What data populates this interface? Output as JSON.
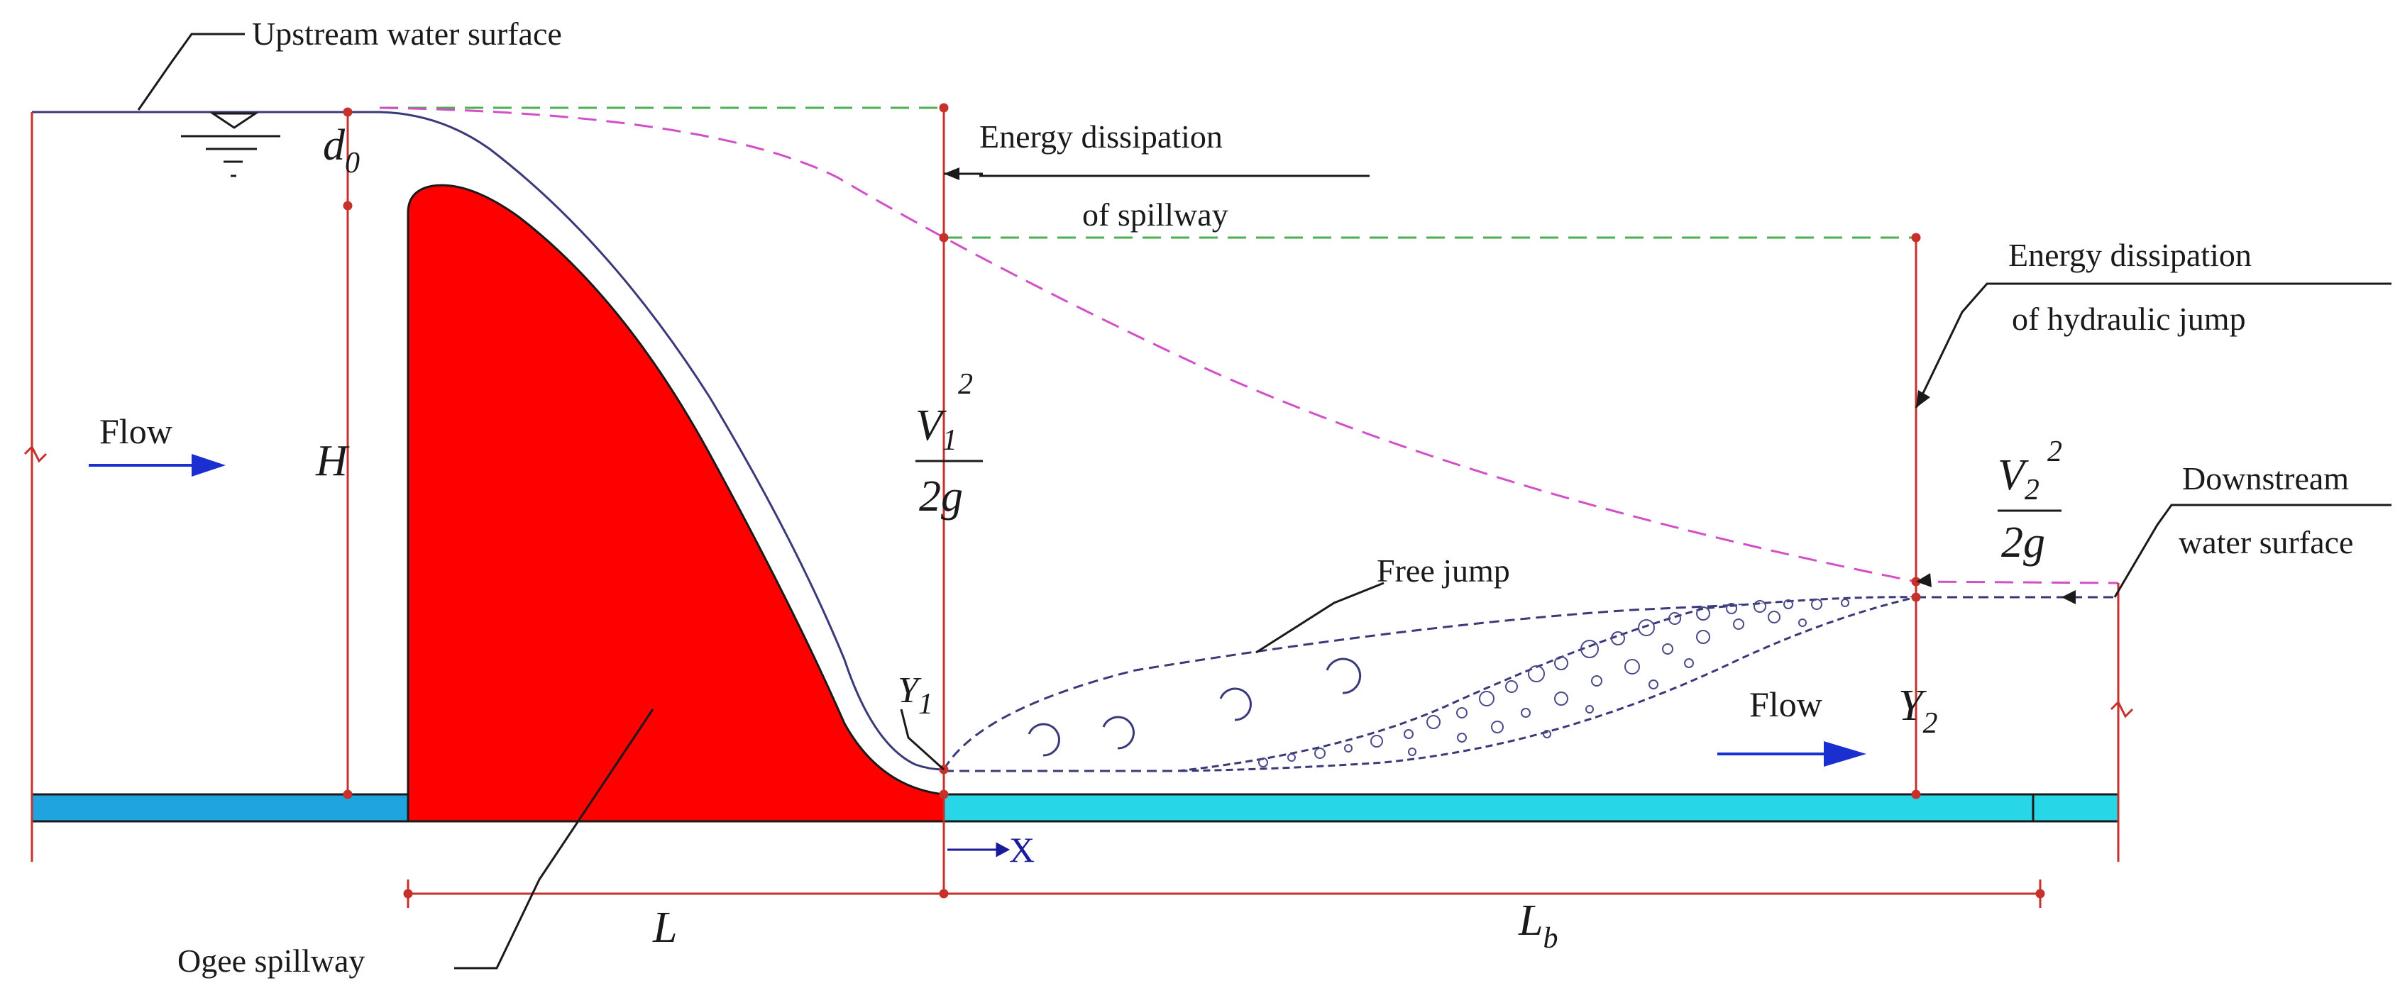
{
  "labels": {
    "upstream_surface": "Upstream water surface",
    "energy_spillway_line1": "Energy dissipation",
    "energy_spillway_line2": "of spillway",
    "energy_jump_line1": "Energy dissipation",
    "energy_jump_line2": "of hydraulic jump",
    "downstream_line1": "Downstream",
    "downstream_line2": "water surface",
    "flow_upstream": "Flow",
    "flow_downstream": "Flow",
    "free_jump": "Free jump",
    "ogee_spillway": "Ogee spillway",
    "d0_base": "d",
    "d0_sub": "0",
    "H": "H",
    "V1_base": "V",
    "V1_sub": "1",
    "V1_exp": "2",
    "V1_den": "2g",
    "V2_base": "V",
    "V2_sub": "2",
    "V2_exp": "2",
    "V2_den": "2g",
    "Y1_base": "Y",
    "Y1_sub": "1",
    "Y2_base": "Y",
    "Y2_sub": "2",
    "L": "L",
    "Lb_base": "L",
    "Lb_sub": "b",
    "X": "X"
  },
  "colors": {
    "spillway_fill": "#ff0000",
    "channel_left": "#1fa4df",
    "channel_right": "#27d7e8",
    "dimension_line": "#c8312b",
    "energy_line_green": "#4caf50",
    "energy_line_magenta": "#d14fc8",
    "water_surface": "#3a3a7a",
    "flow_arrow": "#1b2fd0"
  }
}
